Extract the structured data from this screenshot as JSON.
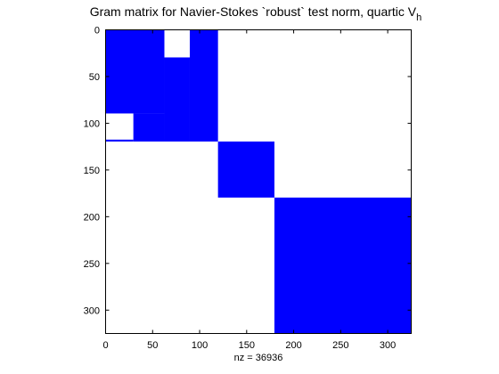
{
  "chart_data": {
    "type": "heatmap",
    "title": "Gram matrix for Navier-Stokes `robust` test norm, quartic V",
    "title_subscript": "h",
    "xlabel": "nz = 36936",
    "ylabel": "",
    "xlim": [
      0,
      325
    ],
    "ylim": [
      325,
      0
    ],
    "xticks": [
      0,
      50,
      100,
      150,
      200,
      250,
      300
    ],
    "yticks": [
      0,
      50,
      100,
      150,
      200,
      250,
      300
    ],
    "marker_color": "#0000ff",
    "grid": false,
    "filled_blocks": [
      {
        "col_start": 0,
        "col_end": 63,
        "row_start": 0,
        "row_end": 90
      },
      {
        "col_start": 63,
        "col_end": 90,
        "row_start": 30,
        "row_end": 120
      },
      {
        "col_start": 90,
        "col_end": 120,
        "row_start": 0,
        "row_end": 120
      },
      {
        "col_start": 30,
        "col_end": 63,
        "row_start": 90,
        "row_end": 120
      },
      {
        "col_start": 0,
        "col_end": 30,
        "row_start": 118,
        "row_end": 120
      },
      {
        "col_start": 120,
        "col_end": 180,
        "row_start": 120,
        "row_end": 180
      },
      {
        "col_start": 180,
        "col_end": 325,
        "row_start": 180,
        "row_end": 325
      }
    ]
  }
}
